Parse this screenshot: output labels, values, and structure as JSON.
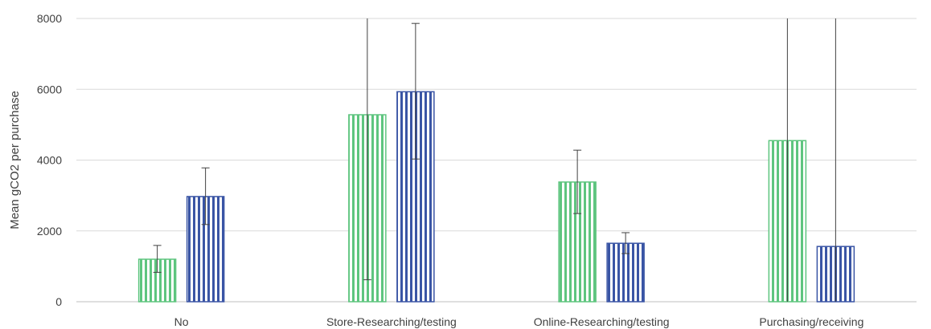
{
  "chart_data": {
    "type": "bar",
    "title": "",
    "xlabel": "",
    "ylabel": "Mean gCO2 per purchase",
    "ylim": [
      0,
      8000
    ],
    "yticks": [
      0,
      2000,
      4000,
      6000,
      8000
    ],
    "grid": true,
    "legend": "none",
    "categories": [
      "No",
      "Store-Researching/testing",
      "Online-Researching/testing",
      "Purchasing/receiving"
    ],
    "series": [
      {
        "color": "#5ec57f",
        "hatch": "vertical-stripes",
        "values": [
          1200,
          5280,
          3380,
          4550
        ],
        "error_low": [
          830,
          620,
          2490,
          0
        ],
        "error_high": [
          1590,
          8000,
          4280,
          8000
        ]
      },
      {
        "color": "#3a55a5",
        "hatch": "vertical-stripes",
        "values": [
          2970,
          5930,
          1650,
          1560
        ],
        "error_low": [
          2180,
          4030,
          1360,
          0
        ],
        "error_high": [
          3780,
          7860,
          1950,
          8000
        ]
      }
    ]
  }
}
